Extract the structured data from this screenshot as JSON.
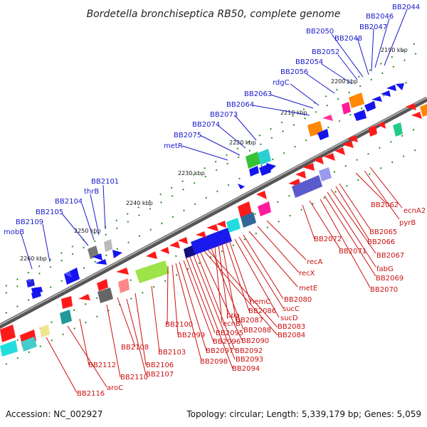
{
  "title": "Bordetella bronchiseptica RB50, complete genome",
  "footer": {
    "accession": "Accession: NC_002927",
    "summary": "Topology: circular; Length: 5,339,179 bp; Genes: 5,059"
  },
  "colors": {
    "forward_label": "#1a1acc",
    "reverse_label": "#cc1111",
    "backbone": "#777777",
    "tick": "#2a8a2a"
  },
  "kbp_ticks": [
    "2190 kbp",
    "2200 kbp",
    "2210 kbp",
    "2220 kbp",
    "2230 kbp",
    "2240 kbp",
    "2250 kbp",
    "2260 kbp"
  ],
  "forward_genes": [
    "BB2044",
    "BB2046",
    "BB2047",
    "BB2048",
    "BB2050",
    "BB2052",
    "BB2054",
    "BB2056",
    "rdgC",
    "BB2063",
    "BB2064",
    "BB2073",
    "BB2074",
    "BB2075",
    "metR",
    "BB2101",
    "thrB",
    "BB2104",
    "BB2105",
    "BB2109",
    "mobB"
  ],
  "reverse_genes": [
    "ecnA2",
    "BB2062",
    "pyrB",
    "BB2065",
    "BB2066",
    "BB2067",
    "fabG",
    "BB2069",
    "BB2070",
    "BB2071",
    "BB2072",
    "recA",
    "recX",
    "metE",
    "BB2080",
    "sucC",
    "sucD",
    "hemC",
    "BB2086",
    "BB2087",
    "ppa",
    "ecnB",
    "BB2088",
    "BB2083",
    "BB2084",
    "BB2090",
    "BB2092",
    "BB2093",
    "BB2094",
    "BB2095",
    "BB2096",
    "BB2097",
    "BB2098",
    "BB2099",
    "BB2100",
    "BB2103",
    "BB2106",
    "BB2107",
    "BB2108",
    "BB2110",
    "BB2112",
    "aroC",
    "BB2116"
  ]
}
